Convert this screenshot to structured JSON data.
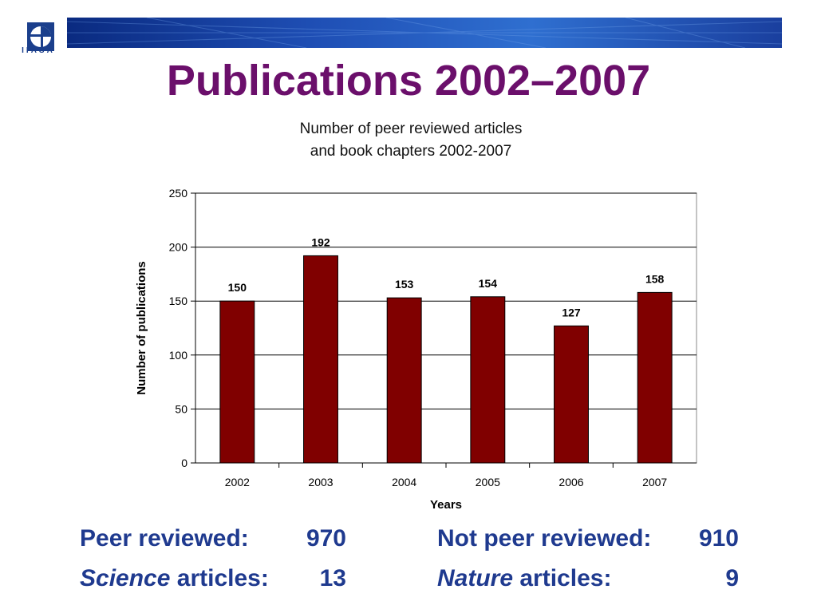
{
  "header": {
    "logo_text": "IIASA",
    "title": "Publications 2002–2007"
  },
  "colors": {
    "title": "#6b0f6b",
    "bar": "#800000",
    "stats": "#1f3a8f"
  },
  "chart_data": {
    "type": "bar",
    "title_lines": [
      "Number of peer reviewed articles",
      "and book chapters 2002-2007"
    ],
    "categories": [
      "2002",
      "2003",
      "2004",
      "2005",
      "2006",
      "2007"
    ],
    "values": [
      150,
      192,
      153,
      154,
      127,
      158
    ],
    "data_labels": [
      "150",
      "192",
      "153",
      "154",
      "127",
      "158"
    ],
    "xlabel": "Years",
    "ylabel": "Number of publications",
    "ylim": [
      0,
      250
    ],
    "yticks": [
      0,
      50,
      100,
      150,
      200,
      250
    ],
    "grid": true,
    "legend": "none"
  },
  "stats": {
    "peer_label": "Peer reviewed:",
    "peer_value": "970",
    "not_peer_label": "Not peer reviewed:",
    "not_peer_value": "910",
    "science_italic": "Science",
    "science_rest": " articles:",
    "science_value": "13",
    "nature_italic": "Nature",
    "nature_rest": " articles:",
    "nature_value": "9"
  }
}
